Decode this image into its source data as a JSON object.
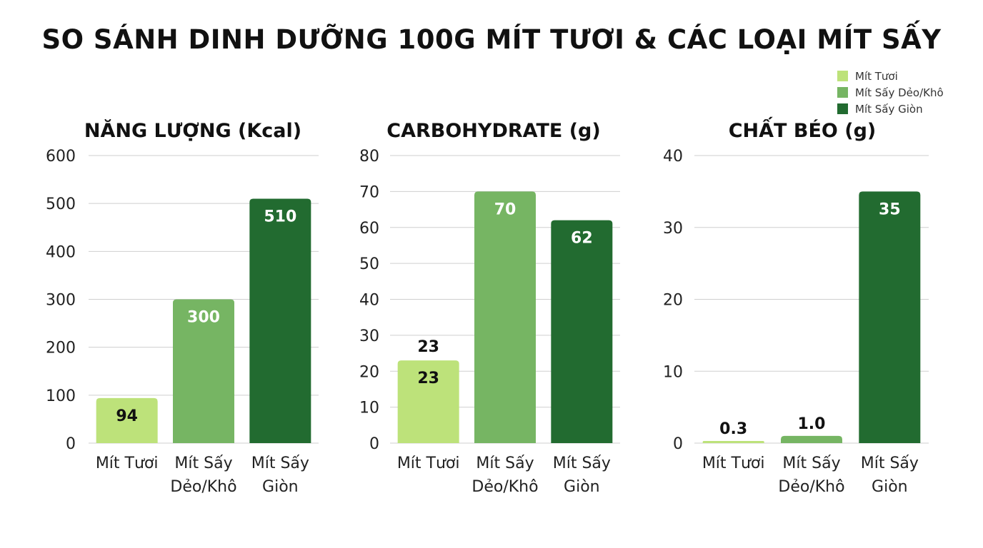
{
  "title": "SO SÁNH DINH DƯỠNG 100G MÍT TƯƠI & CÁC LOẠI MÍT SẤY",
  "legend": [
    {
      "label": "Mít Tươi",
      "color": "#bde27a"
    },
    {
      "label": "Mít Sấy Dẻo/Khô",
      "color": "#76b563"
    },
    {
      "label": "Mít Sấy Giòn",
      "color": "#226b30"
    }
  ],
  "chart_data": [
    {
      "type": "bar",
      "title": "NĂNG LƯỢNG (Kcal)",
      "categories": [
        [
          "Mít Tươi"
        ],
        [
          "Mít Sấy",
          "Dẻo/Khô"
        ],
        [
          "Mít Sấy",
          "Giòn"
        ]
      ],
      "values": [
        94,
        300,
        510
      ],
      "value_labels": [
        "94",
        "300",
        "510"
      ],
      "yticks": [
        0,
        100,
        200,
        300,
        400,
        500,
        600
      ],
      "ylim": [
        0,
        600
      ],
      "colors": [
        "#bde27a",
        "#76b563",
        "#226b30"
      ],
      "grid": true
    },
    {
      "type": "bar",
      "title": "CARBOHYDRATE (g)",
      "categories": [
        [
          "Mít Tươi"
        ],
        [
          "Mít Sấy",
          "Dẻo/Khô"
        ],
        [
          "Mít Sấy",
          "Giòn"
        ]
      ],
      "values": [
        23,
        70,
        62
      ],
      "value_labels": [
        "23",
        "70",
        "62"
      ],
      "extra_label": {
        "category_index": 0,
        "text": "23"
      },
      "yticks": [
        0,
        10,
        20,
        30,
        40,
        50,
        60,
        70,
        80
      ],
      "ylim": [
        0,
        80
      ],
      "colors": [
        "#bde27a",
        "#76b563",
        "#226b30"
      ],
      "grid": true
    },
    {
      "type": "bar",
      "title": "CHẤT BÉO (g)",
      "categories": [
        [
          "Mít Tươi"
        ],
        [
          "Mít Sấy",
          "Dẻo/Khô"
        ],
        [
          "Mít Sấy",
          "Giòn"
        ]
      ],
      "values": [
        0.3,
        1.0,
        35
      ],
      "value_labels": [
        "0.3",
        "1.0",
        "35"
      ],
      "yticks": [
        0,
        10,
        20,
        30,
        40
      ],
      "ylim": [
        0,
        40
      ],
      "colors": [
        "#bde27a",
        "#76b563",
        "#226b30"
      ],
      "grid": true
    }
  ]
}
